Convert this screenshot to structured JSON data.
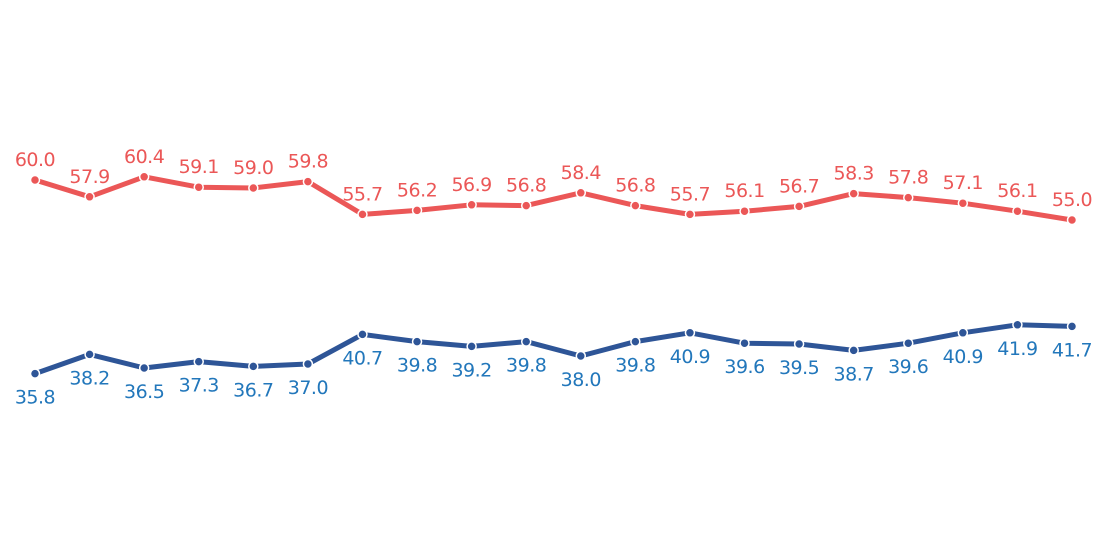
{
  "chart_data": {
    "type": "line",
    "title": "",
    "xlabel": "",
    "ylabel": "",
    "x": [
      1,
      2,
      3,
      4,
      5,
      6,
      7,
      8,
      9,
      10,
      11,
      12,
      13,
      14,
      15,
      16,
      17,
      18,
      19,
      20
    ],
    "ylim": [
      20,
      70
    ],
    "grid": false,
    "legend": "none",
    "series": [
      {
        "color": "#eb5757",
        "label_position": "above",
        "values": [
          60.0,
          57.9,
          60.4,
          59.1,
          59.0,
          59.8,
          55.7,
          56.2,
          56.9,
          56.8,
          58.4,
          56.8,
          55.7,
          56.1,
          56.7,
          58.3,
          57.8,
          57.1,
          56.1,
          55.0
        ],
        "labels": [
          "60.0",
          "57.9",
          "60.4",
          "59.1",
          "59.0",
          "59.8",
          "55.7",
          "56.2",
          "56.9",
          "56.8",
          "58.4",
          "56.8",
          "55.7",
          "56.1",
          "56.7",
          "58.3",
          "57.8",
          "57.1",
          "56.1",
          "55.0"
        ]
      },
      {
        "color": "#2e5597",
        "label_color": "#2277bb",
        "label_position": "below",
        "values": [
          35.8,
          38.2,
          36.5,
          37.3,
          36.7,
          37.0,
          40.7,
          39.8,
          39.2,
          39.8,
          38.0,
          39.8,
          40.9,
          39.6,
          39.5,
          38.7,
          39.6,
          40.9,
          41.9,
          41.7
        ],
        "labels": [
          "35.8",
          "38.2",
          "36.5",
          "37.3",
          "36.7",
          "37.0",
          "40.7",
          "39.8",
          "39.2",
          "39.8",
          "38.0",
          "39.8",
          "40.9",
          "39.6",
          "39.5",
          "38.7",
          "39.6",
          "40.9",
          "41.9",
          "41.7"
        ]
      }
    ]
  }
}
